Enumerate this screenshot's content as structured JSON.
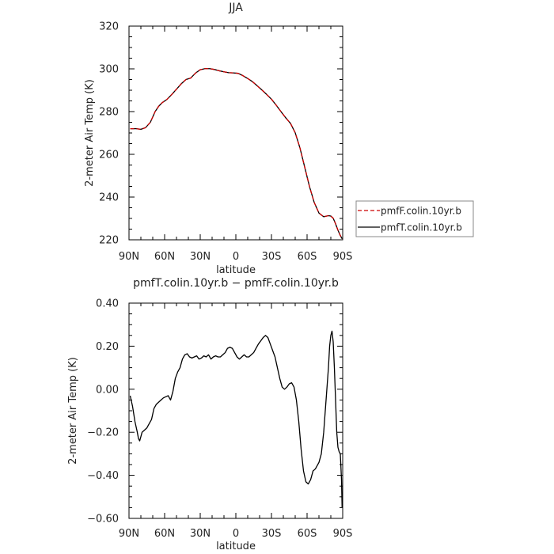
{
  "chart_data": [
    {
      "type": "line",
      "title": "JJA",
      "xlabel": "latitude",
      "ylabel": "2-meter Air Temp (K)",
      "x_ticks": [
        90,
        60,
        30,
        0,
        -30,
        -60,
        -90
      ],
      "x_tick_labels": [
        "90N",
        "60N",
        "30N",
        "0",
        "30S",
        "60S",
        "90S"
      ],
      "xlim": [
        90,
        -90
      ],
      "ylim": [
        220,
        320
      ],
      "y_ticks": [
        220,
        240,
        260,
        280,
        300,
        320
      ],
      "y_tick_labels": [
        "220",
        "240",
        "260",
        "280",
        "300",
        "320"
      ],
      "grid": false,
      "legend_position": "right",
      "series": [
        {
          "name": "pmfF.colin.10yr.b",
          "color": "#cc0000",
          "dash": "dashed",
          "x": [
            89,
            84,
            80,
            76,
            72,
            68,
            65,
            62,
            58,
            54,
            50,
            46,
            42,
            38,
            34,
            30,
            26,
            22,
            18,
            14,
            10,
            6,
            2,
            -2,
            -6,
            -10,
            -14,
            -18,
            -22,
            -26,
            -30,
            -34,
            -38,
            -42,
            -46,
            -50,
            -54,
            -58,
            -62,
            -66,
            -70,
            -74,
            -78,
            -80,
            -82,
            -84,
            -86,
            -88,
            -89.5
          ],
          "y": [
            272,
            272,
            271.7,
            272.5,
            275,
            280,
            282.5,
            284.2,
            285.7,
            288,
            290.5,
            293,
            295,
            295.7,
            298,
            299.6,
            300.1,
            300.1,
            299.7,
            299.1,
            298.6,
            298.2,
            298.1,
            297.9,
            296.8,
            295.5,
            294,
            292.1,
            290.1,
            288,
            285.8,
            283,
            280,
            277.1,
            274.5,
            270.1,
            263,
            254,
            245,
            237.5,
            232.5,
            230.8,
            231.3,
            231.1,
            230.1,
            227.5,
            224.5,
            222,
            220.5
          ]
        },
        {
          "name": "pmfT.colin.10yr.b",
          "color": "#000000",
          "dash": "solid",
          "x": [
            89,
            84,
            80,
            76,
            72,
            68,
            65,
            62,
            58,
            54,
            50,
            46,
            42,
            38,
            34,
            30,
            26,
            22,
            18,
            14,
            10,
            6,
            2,
            -2,
            -6,
            -10,
            -14,
            -18,
            -22,
            -26,
            -30,
            -34,
            -38,
            -42,
            -46,
            -50,
            -54,
            -58,
            -62,
            -66,
            -70,
            -74,
            -78,
            -80,
            -82,
            -84,
            -86,
            -88,
            -89.5
          ],
          "y": [
            272,
            272,
            271.7,
            272.5,
            275,
            280,
            282.5,
            284.2,
            285.7,
            288,
            290.5,
            293,
            295,
            295.7,
            298,
            299.6,
            300.1,
            300.1,
            299.7,
            299.1,
            298.6,
            298.2,
            298.1,
            297.9,
            296.8,
            295.5,
            294,
            292.1,
            290.1,
            288,
            285.8,
            283,
            280,
            277.1,
            274.5,
            270.1,
            263,
            254,
            245,
            237.5,
            232.5,
            230.8,
            231.3,
            231.1,
            230.1,
            227.5,
            224.5,
            222,
            220.5
          ]
        }
      ]
    },
    {
      "type": "line",
      "title": "pmfT.colin.10yr.b − pmfF.colin.10yr.b",
      "xlabel": "latitude",
      "ylabel": "2-meter Air Temp (K)",
      "x_ticks": [
        90,
        60,
        30,
        0,
        -30,
        -60,
        -90
      ],
      "x_tick_labels": [
        "90N",
        "60N",
        "30N",
        "0",
        "30S",
        "60S",
        "90S"
      ],
      "xlim": [
        90,
        -90
      ],
      "ylim": [
        -0.6,
        0.4
      ],
      "y_ticks": [
        -0.6,
        -0.4,
        -0.2,
        0.0,
        0.2,
        0.4
      ],
      "y_tick_labels": [
        "−0.60",
        "−0.40",
        "−0.20",
        "0.00",
        "0.20",
        "0.40"
      ],
      "grid": false,
      "series": [
        {
          "name": "",
          "color": "#000000",
          "dash": "solid",
          "x": [
            89,
            87,
            85,
            83,
            82,
            81,
            80,
            79,
            78,
            77,
            75,
            73,
            71,
            69,
            67,
            65,
            63,
            61,
            59,
            57,
            55,
            53,
            51,
            49,
            47,
            45,
            43,
            41,
            39,
            37,
            35,
            33,
            31,
            29,
            27,
            25,
            23,
            21,
            19,
            17,
            15,
            13,
            11,
            9,
            7,
            5,
            3,
            1,
            -1,
            -3,
            -5,
            -7,
            -9,
            -11,
            -13,
            -15,
            -17,
            -19,
            -21,
            -23,
            -25,
            -27,
            -29,
            -31,
            -33,
            -35,
            -37,
            -39,
            -41,
            -43,
            -45,
            -47,
            -49,
            -51,
            -53,
            -55,
            -57,
            -59,
            -61,
            -63,
            -65,
            -66,
            -67,
            -68,
            -70,
            -72,
            -74,
            -76,
            -78,
            -79,
            -80,
            -81,
            -82,
            -83,
            -84,
            -85,
            -86,
            -87,
            -88,
            -89,
            -89.5
          ],
          "y": [
            -0.03,
            -0.08,
            -0.15,
            -0.2,
            -0.23,
            -0.24,
            -0.22,
            -0.2,
            -0.195,
            -0.19,
            -0.18,
            -0.16,
            -0.14,
            -0.09,
            -0.07,
            -0.06,
            -0.05,
            -0.04,
            -0.035,
            -0.03,
            -0.05,
            -0.01,
            0.05,
            0.08,
            0.1,
            0.14,
            0.16,
            0.165,
            0.15,
            0.145,
            0.15,
            0.155,
            0.14,
            0.145,
            0.155,
            0.15,
            0.16,
            0.14,
            0.15,
            0.155,
            0.15,
            0.15,
            0.16,
            0.17,
            0.19,
            0.195,
            0.19,
            0.17,
            0.15,
            0.14,
            0.15,
            0.16,
            0.15,
            0.15,
            0.16,
            0.17,
            0.19,
            0.21,
            0.225,
            0.24,
            0.25,
            0.24,
            0.21,
            0.18,
            0.15,
            0.1,
            0.05,
            0.01,
            0.0,
            0.01,
            0.025,
            0.03,
            0.01,
            -0.05,
            -0.15,
            -0.28,
            -0.38,
            -0.43,
            -0.44,
            -0.42,
            -0.38,
            -0.375,
            -0.37,
            -0.36,
            -0.34,
            -0.3,
            -0.2,
            -0.05,
            0.1,
            0.2,
            0.25,
            0.27,
            0.22,
            0.1,
            -0.05,
            -0.2,
            -0.27,
            -0.29,
            -0.3,
            -0.42,
            -0.55
          ]
        }
      ]
    }
  ]
}
